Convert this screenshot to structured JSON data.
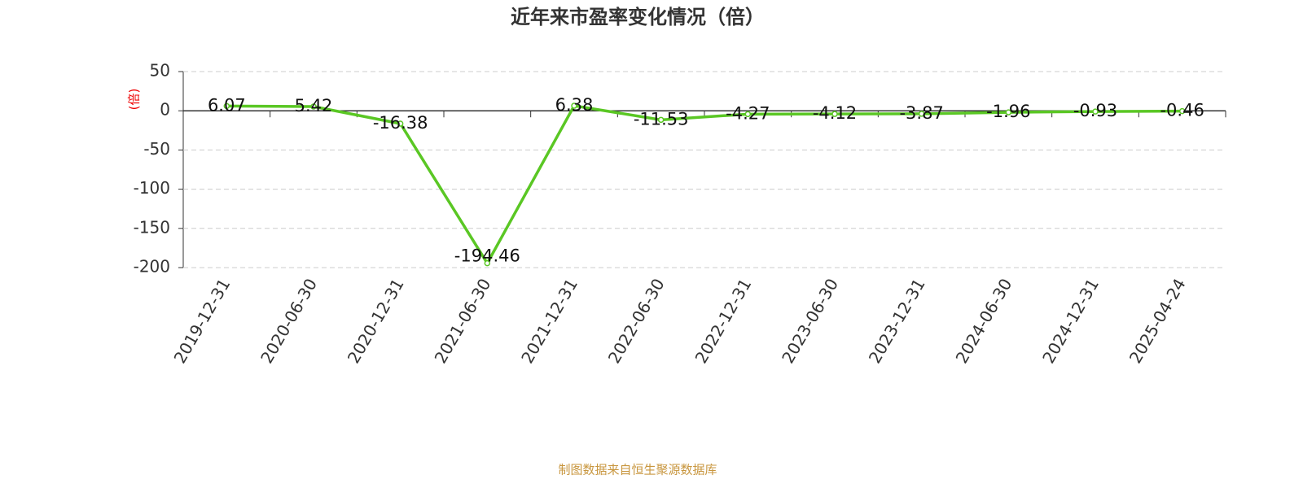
{
  "chart_data": {
    "type": "line",
    "title": "近年来市盈率变化情况（倍）",
    "y_label": "(倍)",
    "categories": [
      "2019-12-31",
      "2020-06-30",
      "2020-12-31",
      "2021-06-30",
      "2021-12-31",
      "2022-06-30",
      "2022-12-31",
      "2023-06-30",
      "2023-12-31",
      "2024-06-30",
      "2024-12-31",
      "2025-04-24"
    ],
    "values": [
      6.07,
      5.42,
      -16.38,
      -194.46,
      6.38,
      -11.53,
      -4.27,
      -4.12,
      -3.87,
      -1.96,
      -0.93,
      -0.46
    ],
    "color": "#5ac724",
    "ylim": [
      -200,
      50
    ],
    "yticks": [
      -200,
      -150,
      -100,
      -50,
      0,
      50
    ],
    "grid": true,
    "source": "制图数据来自恒生聚源数据库"
  }
}
